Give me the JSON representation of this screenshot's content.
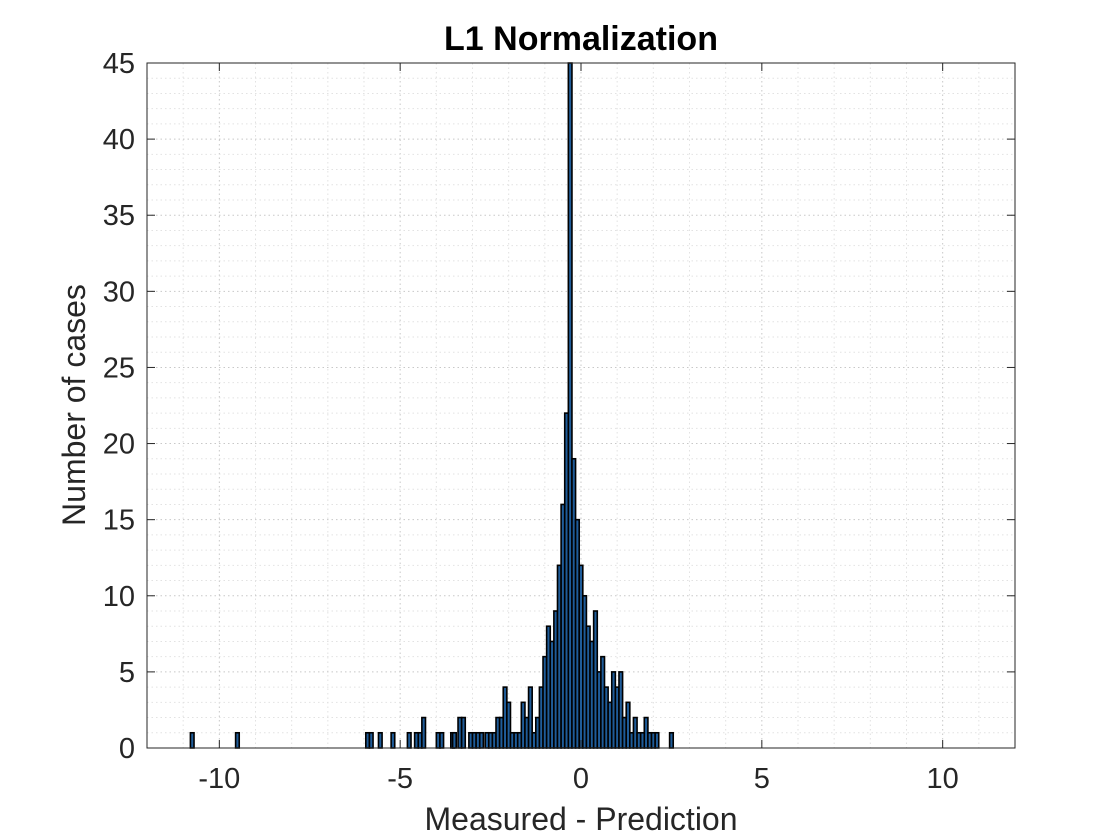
{
  "chart_data": {
    "type": "bar",
    "title": "L1 Normalization",
    "xlabel": "Measured - Prediction",
    "ylabel": "Number of cases",
    "xlim": [
      -12,
      12
    ],
    "ylim": [
      0,
      45
    ],
    "xticks": [
      "-10",
      "-5",
      "0",
      "5",
      "10"
    ],
    "yticks": [
      "0",
      "5",
      "10",
      "15",
      "20",
      "25",
      "30",
      "35",
      "40",
      "45"
    ],
    "grid": "major and minor, dotted",
    "bin_width": 0.1,
    "bar_color": "#1f5c99",
    "bar_edge_color": "#000000",
    "x": [
      -10.75,
      -9.5,
      -5.9,
      -5.8,
      -5.55,
      -5.2,
      -4.75,
      -4.55,
      -4.45,
      -4.35,
      -3.95,
      -3.85,
      -3.55,
      -3.5,
      -3.35,
      -3.25,
      -3.05,
      -2.95,
      -2.85,
      -2.75,
      -2.6,
      -2.5,
      -2.4,
      -2.3,
      -2.2,
      -2.1,
      -2.0,
      -1.9,
      -1.8,
      -1.7,
      -1.6,
      -1.5,
      -1.4,
      -1.3,
      -1.2,
      -1.1,
      -1.0,
      -0.9,
      -0.8,
      -0.7,
      -0.6,
      -0.5,
      -0.4,
      -0.3,
      -0.2,
      -0.1,
      0.0,
      0.1,
      0.2,
      0.3,
      0.4,
      0.5,
      0.6,
      0.7,
      0.8,
      0.9,
      1.0,
      1.1,
      1.2,
      1.3,
      1.4,
      1.5,
      1.6,
      1.7,
      1.8,
      1.9,
      2.0,
      2.1,
      2.5
    ],
    "values": [
      1,
      1,
      1,
      1,
      1,
      1,
      1,
      1,
      1,
      2,
      1,
      1,
      1,
      1,
      2,
      2,
      1,
      1,
      1,
      1,
      1,
      1,
      1,
      2,
      2,
      4,
      3,
      1,
      1,
      1,
      3,
      2,
      4,
      1,
      2,
      4,
      6,
      8,
      7,
      9,
      12,
      16,
      22,
      45,
      19,
      15,
      12,
      10,
      8,
      7,
      9,
      5,
      6,
      4,
      3,
      5,
      4,
      5,
      2,
      3,
      1,
      2,
      1,
      1,
      2,
      1,
      1,
      1,
      1
    ]
  }
}
